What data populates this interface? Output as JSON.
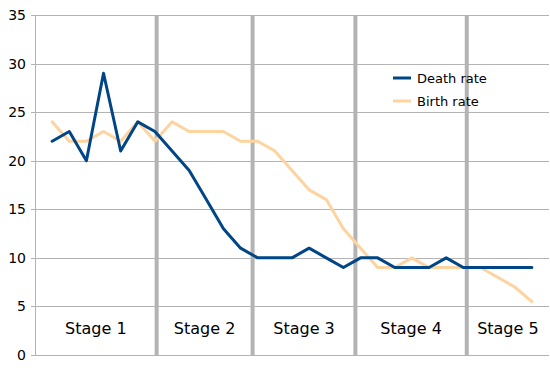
{
  "chart_data": {
    "type": "line",
    "x": [
      1,
      2,
      3,
      4,
      5,
      6,
      7,
      8,
      9,
      10,
      11,
      12,
      13,
      14,
      15,
      16,
      17,
      18,
      19,
      20,
      21,
      22,
      23,
      24,
      25,
      26,
      27,
      28,
      29
    ],
    "xlim": [
      0,
      30
    ],
    "ylim": [
      0,
      35
    ],
    "yticks": [
      0,
      5,
      10,
      15,
      20,
      25,
      30,
      35
    ],
    "grid": true,
    "tick_labels": "y",
    "legend": "upper right",
    "series": [
      {
        "name": "Death rate",
        "color": "#004586",
        "values": [
          22,
          23,
          20,
          29,
          21,
          24,
          23,
          21,
          19,
          16,
          13,
          11,
          10,
          10,
          10,
          11,
          10,
          9,
          10,
          10,
          9,
          9,
          9,
          10,
          9,
          9,
          9,
          9,
          9
        ]
      },
      {
        "name": "Birth rate",
        "color": "#fdd4a0",
        "values": [
          24,
          22,
          22,
          23,
          22,
          24,
          22,
          24,
          23,
          23,
          23,
          22,
          22,
          21,
          19,
          17,
          16,
          13,
          11,
          9,
          9,
          10,
          9,
          9,
          9,
          9,
          8,
          7,
          5.5
        ]
      }
    ],
    "stages": [
      "Stage 1",
      "Stage 2",
      "Stage 3",
      "Stage 4",
      "Stage 5"
    ],
    "stage_bounds": [
      7.1,
      12.7,
      18.7,
      25.2
    ]
  }
}
